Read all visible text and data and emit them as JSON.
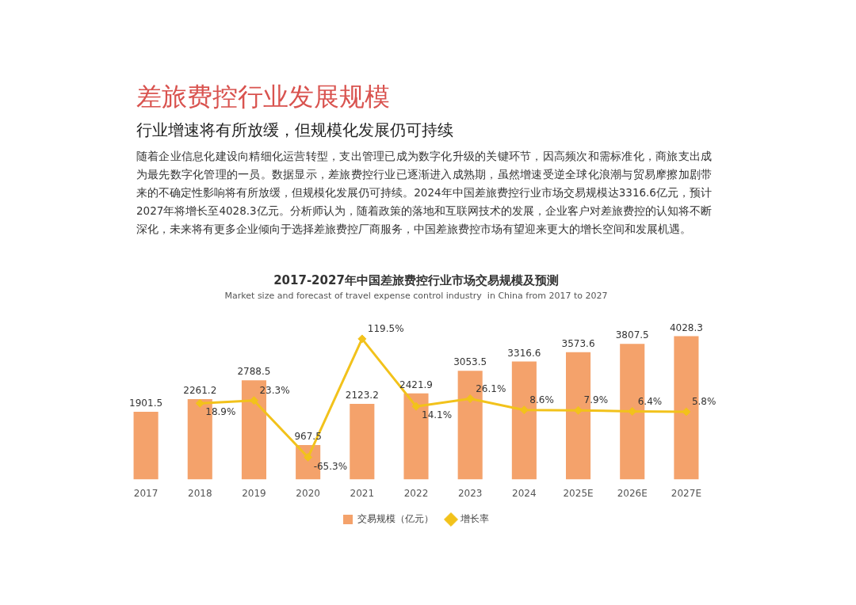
{
  "chart_data": {
    "type": "bar",
    "title": "2017-2027年中国差旅费控行业市场交易规模及预测",
    "subtitle": "Market size and forecast of travel expense control industry  in China from 2017 to 2027",
    "annotations": [
      "差旅费控行业发展规模",
      "行业增速将有所放缓，但规模化发展仍可持续",
      "随着企业信息化建设向精细化运营转型，支出管理已成为数字化升级的关键环节，因高频次和需标准化，商旅支出成为最先数字化管理的一员。数据显示，差旅费控行业已逐渐进入成熟期，虽然增速受逆全球化浪潮与贸易摩擦加剧带来的不确定性影响将有所放缓，但规模化发展仍可持续。2024年中国差旅费控行业市场交易规模达3316.6亿元，预计2027年将增长至4028.3亿元。分析师认为，随着政策的落地和互联网技术的发展，企业客户对差旅费控的认知将不断深化，未来将有更多企业倾向于选择差旅费控厂商服务，中国差旅费控市场有望迎来更大的增长空间和发展机遇。"
    ],
    "categories": [
      "2017",
      "2018",
      "2019",
      "2020",
      "2021",
      "2022",
      "2023",
      "2024",
      "2025E",
      "2026E",
      "2027E"
    ],
    "series": [
      {
        "name": "交易规模（亿元）",
        "color": "#f4a26b",
        "values": [
          1901.5,
          2261.2,
          2788.5,
          967.5,
          2123.2,
          2421.9,
          3053.5,
          3316.6,
          3573.6,
          3807.5,
          4028.3
        ],
        "value_labels": [
          "1901.5",
          "2261.2",
          "2788.5",
          "967.5",
          "2123.2",
          "2421.9",
          "3053.5",
          "3316.6",
          "3573.6",
          "3807.5",
          "4028.3"
        ]
      },
      {
        "name": "增长率",
        "type": "line",
        "axis": "y2",
        "color": "#f2c21b",
        "values": [
          null,
          18.9,
          23.3,
          -65.3,
          119.5,
          14.1,
          26.1,
          8.6,
          7.9,
          6.4,
          5.8
        ],
        "value_labels": [
          null,
          "18.9%",
          "23.3%",
          "-65.3%",
          "119.5%",
          "14.1%",
          "26.1%",
          "8.6%",
          "7.9%",
          "6.4%",
          "5.8%"
        ]
      }
    ],
    "marker": "diamond",
    "legend": "bottom",
    "grid": false,
    "tick_labels": "x"
  }
}
